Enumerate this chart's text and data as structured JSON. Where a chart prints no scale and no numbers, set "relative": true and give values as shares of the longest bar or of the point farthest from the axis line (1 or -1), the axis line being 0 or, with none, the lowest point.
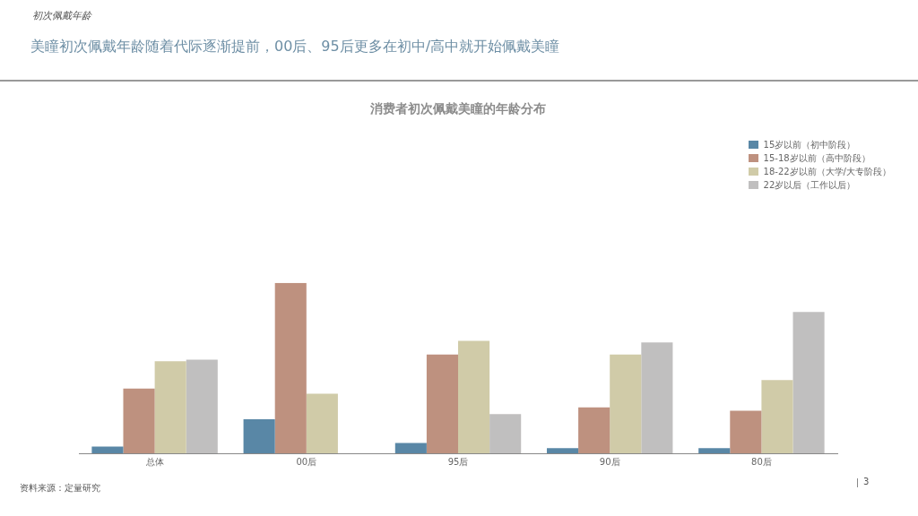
{
  "chart_data": {
    "type": "bar",
    "title": "消费者初次佩戴美瞳的年龄分布",
    "subtitle": "美瞳初次佩戴年龄随着代际逐渐提前，00后、95后更多在初中/高中就开始佩戴美瞳",
    "annotations": [
      "初次佩戴年龄",
      "资料来源：定量研究",
      "3"
    ],
    "categories": [
      "总体",
      "00后",
      "95后",
      "90后",
      "80后"
    ],
    "relative": true,
    "legend": "top right",
    "grid": false,
    "series": [
      {
        "name": "15岁以前（初中阶段）",
        "color": "#5987a6",
        "values": [
          0.04,
          0.2,
          0.06,
          0.03,
          0.03
        ]
      },
      {
        "name": "15-18岁以前（高中阶段）",
        "color": "#be917f",
        "values": [
          0.38,
          1,
          0.58,
          0.27,
          0.25
        ]
      },
      {
        "name": "18-22岁以前（大学/大专阶段）",
        "color": "#d0cba8",
        "values": [
          0.54,
          0.35,
          0.66,
          0.58,
          0.43
        ]
      },
      {
        "name": "22岁以后（工作以后）",
        "color": "#c0bfbf",
        "values": [
          0.55,
          0,
          0.23,
          0.65,
          0.83
        ]
      }
    ]
  }
}
